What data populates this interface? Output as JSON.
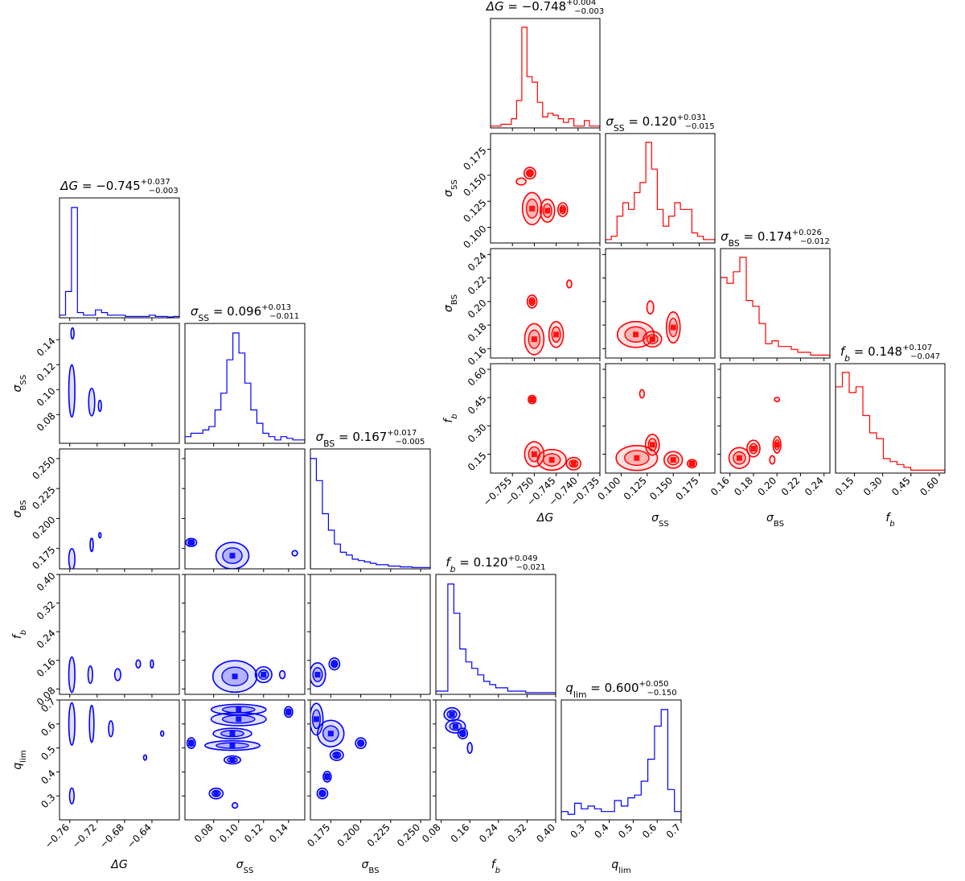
{
  "chart_data": [
    {
      "type": "corner",
      "name": "blue",
      "color": "#0000ff",
      "parameters": [
        {
          "key": "dG",
          "label": "ΔG",
          "value": "−0.745",
          "plus": "+0.037",
          "minus": "−0.003",
          "range": [
            -0.775,
            -0.6
          ],
          "ticks": [
            -0.76,
            -0.72,
            -0.68,
            -0.64
          ],
          "tick_labels": [
            "−0.76",
            "−0.72",
            "−0.68",
            "−0.64"
          ]
        },
        {
          "key": "sSS",
          "label": "σSS",
          "value": "0.096",
          "plus": "+0.013",
          "minus": "−0.011",
          "range": [
            0.057,
            0.153
          ],
          "ticks": [
            0.08,
            0.1,
            0.12,
            0.14
          ],
          "tick_labels": [
            "0.08",
            "0.10",
            "0.12",
            "0.14"
          ]
        },
        {
          "key": "sBS",
          "label": "σBS",
          "value": "0.167",
          "plus": "+0.017",
          "minus": "−0.005",
          "range": [
            0.158,
            0.258
          ],
          "ticks": [
            0.175,
            0.2,
            0.225,
            0.25
          ],
          "tick_labels": [
            "0.175",
            "0.200",
            "0.225",
            "0.250"
          ]
        },
        {
          "key": "fb",
          "label": "fb",
          "value": "0.120",
          "plus": "+0.049",
          "minus": "−0.021",
          "range": [
            0.065,
            0.4
          ],
          "ticks": [
            0.08,
            0.16,
            0.24,
            0.32,
            0.4
          ],
          "tick_labels": [
            "0.08",
            "0.16",
            "0.24",
            "0.32",
            "0.40"
          ]
        },
        {
          "key": "qlim",
          "label": "qlim",
          "value": "0.600",
          "plus": "+0.050",
          "minus": "−0.150",
          "range": [
            0.2,
            0.7
          ],
          "ticks": [
            0.3,
            0.4,
            0.5,
            0.6,
            0.7
          ],
          "tick_labels": [
            "0.3",
            "0.4",
            "0.5",
            "0.6",
            "0.7"
          ]
        }
      ],
      "histograms": [
        [
          1,
          10,
          42,
          2,
          1,
          1,
          3,
          2,
          1,
          1,
          1,
          0.5,
          0.5,
          0.5,
          0.5,
          1,
          0.5,
          0.5,
          0.3,
          0.5
        ],
        [
          2,
          3,
          3,
          4,
          5,
          10,
          15,
          25,
          33,
          27,
          18,
          10,
          6,
          3,
          2,
          1,
          2,
          1.5,
          1,
          1
        ],
        [
          40,
          32,
          20,
          14,
          9,
          6,
          5,
          3.5,
          3,
          2.5,
          2,
          1.5,
          1.5,
          1,
          1,
          0.7,
          0.7,
          0.5,
          0.5,
          0.5
        ],
        [
          1,
          1,
          34,
          25,
          14,
          10,
          8,
          6,
          4,
          3,
          2,
          2,
          1,
          1,
          1,
          0.5,
          0.5,
          0.5,
          0.5,
          0.5
        ],
        [
          3,
          2,
          6,
          4,
          5,
          4,
          3,
          3,
          7,
          5,
          8,
          9,
          14,
          22,
          34,
          40,
          11,
          3
        ]
      ],
      "blobs": [
        {
          "pair": [
            0,
            1
          ],
          "x": -0.757,
          "y": 0.099,
          "rx": 0.004,
          "ry": 0.019
        },
        {
          "pair": [
            0,
            1
          ],
          "x": -0.728,
          "y": 0.09,
          "rx": 0.004,
          "ry": 0.01
        },
        {
          "pair": [
            0,
            1
          ],
          "x": -0.716,
          "y": 0.087,
          "rx": 0.002,
          "ry": 0.004
        },
        {
          "pair": [
            0,
            1
          ],
          "x": -0.756,
          "y": 0.145,
          "rx": 0.002,
          "ry": 0.004
        },
        {
          "pair": [
            0,
            2
          ],
          "x": -0.757,
          "y": 0.166,
          "rx": 0.004,
          "ry": 0.008
        },
        {
          "pair": [
            0,
            2
          ],
          "x": -0.728,
          "y": 0.178,
          "rx": 0.002,
          "ry": 0.005
        },
        {
          "pair": [
            0,
            2
          ],
          "x": -0.716,
          "y": 0.186,
          "rx": 0.0015,
          "ry": 0.002
        },
        {
          "pair": [
            0,
            3
          ],
          "x": -0.757,
          "y": 0.12,
          "rx": 0.004,
          "ry": 0.045
        },
        {
          "pair": [
            0,
            3
          ],
          "x": -0.73,
          "y": 0.12,
          "rx": 0.003,
          "ry": 0.022
        },
        {
          "pair": [
            0,
            3
          ],
          "x": -0.69,
          "y": 0.12,
          "rx": 0.004,
          "ry": 0.015
        },
        {
          "pair": [
            0,
            3
          ],
          "x": -0.66,
          "y": 0.15,
          "rx": 0.003,
          "ry": 0.01
        },
        {
          "pair": [
            0,
            3
          ],
          "x": -0.64,
          "y": 0.15,
          "rx": 0.002,
          "ry": 0.01
        },
        {
          "pair": [
            0,
            4
          ],
          "x": -0.757,
          "y": 0.6,
          "rx": 0.004,
          "ry": 0.08
        },
        {
          "pair": [
            0,
            4
          ],
          "x": -0.728,
          "y": 0.6,
          "rx": 0.003,
          "ry": 0.07
        },
        {
          "pair": [
            0,
            4
          ],
          "x": -0.7,
          "y": 0.58,
          "rx": 0.003,
          "ry": 0.03
        },
        {
          "pair": [
            0,
            4
          ],
          "x": -0.757,
          "y": 0.3,
          "rx": 0.003,
          "ry": 0.03
        },
        {
          "pair": [
            0,
            4
          ],
          "x": -0.65,
          "y": 0.46,
          "rx": 0.002,
          "ry": 0.01
        },
        {
          "pair": [
            0,
            4
          ],
          "x": -0.625,
          "y": 0.56,
          "rx": 0.002,
          "ry": 0.01
        },
        {
          "pair": [
            1,
            2
          ],
          "x": 0.095,
          "y": 0.169,
          "rx": 0.012,
          "ry": 0.01
        },
        {
          "pair": [
            1,
            2
          ],
          "x": 0.062,
          "y": 0.18,
          "rx": 0.004,
          "ry": 0.003
        },
        {
          "pair": [
            1,
            2
          ],
          "x": 0.145,
          "y": 0.171,
          "rx": 0.002,
          "ry": 0.002
        },
        {
          "pair": [
            1,
            3
          ],
          "x": 0.097,
          "y": 0.115,
          "rx": 0.016,
          "ry": 0.04
        },
        {
          "pair": [
            1,
            3
          ],
          "x": 0.12,
          "y": 0.12,
          "rx": 0.006,
          "ry": 0.02
        },
        {
          "pair": [
            1,
            3
          ],
          "x": 0.135,
          "y": 0.12,
          "rx": 0.002,
          "ry": 0.01
        },
        {
          "pair": [
            1,
            4
          ],
          "x": 0.1,
          "y": 0.66,
          "rx": 0.02,
          "ry": 0.02
        },
        {
          "pair": [
            1,
            4
          ],
          "x": 0.1,
          "y": 0.62,
          "rx": 0.02,
          "ry": 0.025
        },
        {
          "pair": [
            1,
            4
          ],
          "x": 0.095,
          "y": 0.56,
          "rx": 0.014,
          "ry": 0.02
        },
        {
          "pair": [
            1,
            4
          ],
          "x": 0.095,
          "y": 0.51,
          "rx": 0.02,
          "ry": 0.018
        },
        {
          "pair": [
            1,
            4
          ],
          "x": 0.095,
          "y": 0.45,
          "rx": 0.006,
          "ry": 0.015
        },
        {
          "pair": [
            1,
            4
          ],
          "x": 0.082,
          "y": 0.31,
          "rx": 0.005,
          "ry": 0.02
        },
        {
          "pair": [
            1,
            4
          ],
          "x": 0.097,
          "y": 0.26,
          "rx": 0.002,
          "ry": 0.01
        },
        {
          "pair": [
            1,
            4
          ],
          "x": 0.062,
          "y": 0.52,
          "rx": 0.003,
          "ry": 0.02
        },
        {
          "pair": [
            1,
            4
          ],
          "x": 0.14,
          "y": 0.65,
          "rx": 0.003,
          "ry": 0.02
        },
        {
          "pair": [
            2,
            3
          ],
          "x": 0.164,
          "y": 0.12,
          "rx": 0.006,
          "ry": 0.03
        },
        {
          "pair": [
            2,
            3
          ],
          "x": 0.178,
          "y": 0.15,
          "rx": 0.004,
          "ry": 0.015
        },
        {
          "pair": [
            2,
            4
          ],
          "x": 0.163,
          "y": 0.62,
          "rx": 0.005,
          "ry": 0.06
        },
        {
          "pair": [
            2,
            4
          ],
          "x": 0.175,
          "y": 0.56,
          "rx": 0.01,
          "ry": 0.05
        },
        {
          "pair": [
            2,
            4
          ],
          "x": 0.18,
          "y": 0.47,
          "rx": 0.005,
          "ry": 0.02
        },
        {
          "pair": [
            2,
            4
          ],
          "x": 0.2,
          "y": 0.52,
          "rx": 0.004,
          "ry": 0.02
        },
        {
          "pair": [
            2,
            4
          ],
          "x": 0.168,
          "y": 0.31,
          "rx": 0.004,
          "ry": 0.02
        },
        {
          "pair": [
            2,
            4
          ],
          "x": 0.172,
          "y": 0.38,
          "rx": 0.003,
          "ry": 0.02
        },
        {
          "pair": [
            3,
            4
          ],
          "x": 0.11,
          "y": 0.64,
          "rx": 0.02,
          "ry": 0.025
        },
        {
          "pair": [
            3,
            4
          ],
          "x": 0.12,
          "y": 0.59,
          "rx": 0.025,
          "ry": 0.025
        },
        {
          "pair": [
            3,
            4
          ],
          "x": 0.14,
          "y": 0.56,
          "rx": 0.012,
          "ry": 0.02
        },
        {
          "pair": [
            3,
            4
          ],
          "x": 0.16,
          "y": 0.5,
          "rx": 0.006,
          "ry": 0.02
        }
      ]
    },
    {
      "type": "corner",
      "name": "red",
      "color": "#ff0000",
      "parameters": [
        {
          "key": "dG",
          "label": "ΔG",
          "value": "−0.748",
          "plus": "+0.004",
          "minus": "−0.003",
          "range": [
            -0.76,
            -0.735
          ],
          "ticks": [
            -0.755,
            -0.75,
            -0.745,
            -0.74,
            -0.735
          ],
          "tick_labels": [
            "−0.755",
            "−0.750",
            "−0.745",
            "−0.740",
            "−0.735"
          ]
        },
        {
          "key": "sSS",
          "label": "σSS",
          "value": "0.120",
          "plus": "+0.031",
          "minus": "−0.015",
          "range": [
            0.085,
            0.19
          ],
          "ticks": [
            0.1,
            0.125,
            0.15,
            0.175
          ],
          "tick_labels": [
            "0.100",
            "0.125",
            "0.150",
            "0.175"
          ]
        },
        {
          "key": "sBS",
          "label": "σBS",
          "value": "0.174",
          "plus": "+0.026",
          "minus": "−0.012",
          "range": [
            0.152,
            0.245
          ],
          "ticks": [
            0.16,
            0.18,
            0.2,
            0.22,
            0.24
          ],
          "tick_labels": [
            "0.16",
            "0.18",
            "0.20",
            "0.22",
            "0.24"
          ]
        },
        {
          "key": "fb",
          "label": "fb",
          "value": "0.148",
          "plus": "+0.107",
          "minus": "−0.047",
          "range": [
            0.05,
            0.63
          ],
          "ticks": [
            0.15,
            0.3,
            0.45,
            0.6
          ],
          "tick_labels": [
            "0.15",
            "0.30",
            "0.45",
            "0.60"
          ]
        }
      ],
      "histograms": [
        [
          1,
          1,
          2,
          2,
          5,
          15,
          55,
          28,
          25,
          14,
          6,
          8,
          7,
          5,
          3,
          5,
          1,
          1,
          4,
          1,
          1
        ],
        [
          1,
          2,
          8,
          12,
          10,
          15,
          18,
          30,
          22,
          10,
          5,
          8,
          12,
          10,
          10,
          3,
          2,
          1,
          1
        ],
        [
          28,
          26,
          30,
          35,
          20,
          18,
          12,
          5,
          6,
          4,
          4,
          3,
          2,
          2,
          1,
          1,
          1
        ],
        [
          30,
          35,
          28,
          30,
          20,
          14,
          12,
          5,
          4,
          3,
          2,
          1,
          1,
          1,
          1,
          1
        ]
      ],
      "blobs": [
        {
          "pair": [
            0,
            1
          ],
          "x": -0.751,
          "y": 0.152,
          "rx": 0.0012,
          "ry": 0.005
        },
        {
          "pair": [
            0,
            1
          ],
          "x": -0.7505,
          "y": 0.118,
          "rx": 0.002,
          "ry": 0.014
        },
        {
          "pair": [
            0,
            1
          ],
          "x": -0.747,
          "y": 0.116,
          "rx": 0.0015,
          "ry": 0.01
        },
        {
          "pair": [
            0,
            1
          ],
          "x": -0.7435,
          "y": 0.117,
          "rx": 0.001,
          "ry": 0.006
        },
        {
          "pair": [
            0,
            1
          ],
          "x": -0.753,
          "y": 0.144,
          "rx": 0.001,
          "ry": 0.003
        },
        {
          "pair": [
            0,
            2
          ],
          "x": -0.75,
          "y": 0.168,
          "rx": 0.002,
          "ry": 0.012
        },
        {
          "pair": [
            0,
            2
          ],
          "x": -0.745,
          "y": 0.172,
          "rx": 0.0015,
          "ry": 0.01
        },
        {
          "pair": [
            0,
            2
          ],
          "x": -0.7505,
          "y": 0.2,
          "rx": 0.001,
          "ry": 0.005
        },
        {
          "pair": [
            0,
            2
          ],
          "x": -0.742,
          "y": 0.215,
          "rx": 0.0005,
          "ry": 0.003
        },
        {
          "pair": [
            0,
            3
          ],
          "x": -0.75,
          "y": 0.15,
          "rx": 0.002,
          "ry": 0.06
        },
        {
          "pair": [
            0,
            3
          ],
          "x": -0.746,
          "y": 0.12,
          "rx": 0.003,
          "ry": 0.05
        },
        {
          "pair": [
            0,
            3
          ],
          "x": -0.7505,
          "y": 0.44,
          "rx": 0.0008,
          "ry": 0.02
        },
        {
          "pair": [
            0,
            3
          ],
          "x": -0.741,
          "y": 0.1,
          "rx": 0.0015,
          "ry": 0.03
        },
        {
          "pair": [
            1,
            2
          ],
          "x": 0.114,
          "y": 0.172,
          "rx": 0.016,
          "ry": 0.01
        },
        {
          "pair": [
            1,
            2
          ],
          "x": 0.13,
          "y": 0.168,
          "rx": 0.008,
          "ry": 0.006
        },
        {
          "pair": [
            1,
            2
          ],
          "x": 0.15,
          "y": 0.178,
          "rx": 0.006,
          "ry": 0.012
        },
        {
          "pair": [
            1,
            2
          ],
          "x": 0.128,
          "y": 0.195,
          "rx": 0.003,
          "ry": 0.005
        },
        {
          "pair": [
            1,
            3
          ],
          "x": 0.115,
          "y": 0.13,
          "rx": 0.018,
          "ry": 0.06
        },
        {
          "pair": [
            1,
            3
          ],
          "x": 0.13,
          "y": 0.2,
          "rx": 0.006,
          "ry": 0.05
        },
        {
          "pair": [
            1,
            3
          ],
          "x": 0.15,
          "y": 0.12,
          "rx": 0.008,
          "ry": 0.04
        },
        {
          "pair": [
            1,
            3
          ],
          "x": 0.12,
          "y": 0.47,
          "rx": 0.002,
          "ry": 0.02
        },
        {
          "pair": [
            1,
            3
          ],
          "x": 0.168,
          "y": 0.1,
          "rx": 0.004,
          "ry": 0.02
        },
        {
          "pair": [
            2,
            3
          ],
          "x": 0.168,
          "y": 0.13,
          "rx": 0.008,
          "ry": 0.05
        },
        {
          "pair": [
            2,
            3
          ],
          "x": 0.18,
          "y": 0.18,
          "rx": 0.005,
          "ry": 0.04
        },
        {
          "pair": [
            2,
            3
          ],
          "x": 0.2,
          "y": 0.2,
          "rx": 0.003,
          "ry": 0.04
        },
        {
          "pair": [
            2,
            3
          ],
          "x": 0.2,
          "y": 0.44,
          "rx": 0.002,
          "ry": 0.01
        },
        {
          "pair": [
            2,
            3
          ],
          "x": 0.196,
          "y": 0.12,
          "rx": 0.002,
          "ry": 0.02
        }
      ]
    }
  ]
}
